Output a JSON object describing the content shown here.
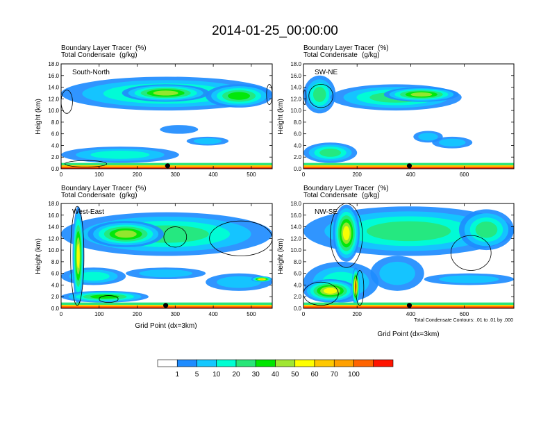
{
  "figure": {
    "title": "2014-01-25_00:00:00",
    "field_title": "Boundary Layer Tracer",
    "field_units": "(%)",
    "contour_title": "Total Condensate",
    "contour_units": "(g/kg)",
    "xlabel": "Grid Point (dx=3km)",
    "ylabel": "Height (km)",
    "footnote": "Total Condensate Contours: .01 to .01 by .000"
  },
  "colorbar": {
    "levels": [
      "1",
      "5",
      "10",
      "20",
      "30",
      "40",
      "50",
      "60",
      "70",
      "100"
    ],
    "colors": [
      "#ffffff",
      "#1e8cff",
      "#14c8ff",
      "#00ffd2",
      "#28e678",
      "#00e600",
      "#a0e632",
      "#ffff00",
      "#ffc800",
      "#ffa000",
      "#ff6400",
      "#ff1400"
    ]
  },
  "chart_data": [
    {
      "type": "heatmap",
      "label": "South-North",
      "xlim": [
        0,
        555
      ],
      "ylim": [
        0,
        18
      ],
      "xticks": [
        0,
        100,
        200,
        300,
        400,
        500
      ],
      "yticks": [
        "0.0",
        "2.0",
        "4.0",
        "6.0",
        "8.0",
        "10.0",
        "12.0",
        "14.0",
        "16.0",
        "18.0"
      ],
      "yvals": [
        0,
        2,
        4,
        6,
        8,
        10,
        12,
        14,
        16,
        18
      ],
      "marker_x": 280,
      "blobs": [
        {
          "x0": 0,
          "x1": 555,
          "y0": 10.0,
          "y1": 15.8,
          "level": 4
        },
        {
          "x0": 160,
          "x1": 390,
          "y0": 11.5,
          "y1": 14.5,
          "level": 6
        },
        {
          "x0": 380,
          "x1": 555,
          "y0": 10.5,
          "y1": 14.5,
          "level": 5
        },
        {
          "x0": 260,
          "x1": 360,
          "y0": 6.0,
          "y1": 7.5,
          "level": 1
        },
        {
          "x0": 330,
          "x1": 440,
          "y0": 4.0,
          "y1": 5.5,
          "level": 2
        },
        {
          "x0": 0,
          "x1": 310,
          "y0": 1.0,
          "y1": 3.8,
          "level": 3
        }
      ],
      "contours": [
        {
          "x0": 0,
          "x1": 30,
          "y0": 9.5,
          "y1": 13.5
        },
        {
          "x0": 540,
          "x1": 555,
          "y0": 11.0,
          "y1": 14.5
        },
        {
          "x0": 10,
          "x1": 120,
          "y0": 0.3,
          "y1": 1.4
        }
      ]
    },
    {
      "type": "heatmap",
      "label": "SW-NE",
      "xlim": [
        0,
        785
      ],
      "ylim": [
        0,
        18
      ],
      "xticks": [
        0,
        200,
        400,
        600
      ],
      "yticks": [
        "0.0",
        "2.0",
        "4.0",
        "6.0",
        "8.0",
        "10.0",
        "12.0",
        "14.0",
        "16.0",
        "18.0"
      ],
      "yvals": [
        0,
        2,
        4,
        6,
        8,
        10,
        12,
        14,
        16,
        18
      ],
      "marker_x": 395,
      "blobs": [
        {
          "x0": 0,
          "x1": 120,
          "y0": 9.5,
          "y1": 16.0,
          "level": 4
        },
        {
          "x0": 100,
          "x1": 590,
          "y0": 10.0,
          "y1": 14.5,
          "level": 4
        },
        {
          "x0": 300,
          "x1": 580,
          "y0": 11.5,
          "y1": 14.0,
          "level": 6
        },
        {
          "x0": 410,
          "x1": 520,
          "y0": 4.5,
          "y1": 6.5,
          "level": 2
        },
        {
          "x0": 480,
          "x1": 630,
          "y0": 3.5,
          "y1": 5.5,
          "level": 2
        },
        {
          "x0": 0,
          "x1": 200,
          "y0": 1.0,
          "y1": 4.5,
          "level": 4
        }
      ],
      "contours": [
        {
          "x0": 20,
          "x1": 110,
          "y0": 10.5,
          "y1": 14.5
        },
        {
          "x0": 0,
          "x1": 10,
          "y0": 11.0,
          "y1": 13.5
        }
      ]
    },
    {
      "type": "heatmap",
      "label": "West-East",
      "xlim": [
        0,
        555
      ],
      "ylim": [
        0,
        18
      ],
      "xticks": [
        0,
        100,
        200,
        300,
        400,
        500
      ],
      "yticks": [
        "0.0",
        "2.0",
        "4.0",
        "6.0",
        "8.0",
        "10.0",
        "12.0",
        "14.0",
        "16.0",
        "18.0"
      ],
      "yvals": [
        0,
        2,
        4,
        6,
        8,
        10,
        12,
        14,
        16,
        18
      ],
      "marker_x": 275,
      "blobs": [
        {
          "x0": 0,
          "x1": 555,
          "y0": 9.0,
          "y1": 16.5,
          "level": 4
        },
        {
          "x0": 70,
          "x1": 270,
          "y0": 10.5,
          "y1": 15.0,
          "level": 6
        },
        {
          "x0": 0,
          "x1": 170,
          "y0": 4.0,
          "y1": 7.0,
          "level": 3
        },
        {
          "x0": 170,
          "x1": 380,
          "y0": 5.0,
          "y1": 7.0,
          "level": 2
        },
        {
          "x0": 380,
          "x1": 555,
          "y0": 3.0,
          "y1": 6.0,
          "level": 2
        },
        {
          "x0": 500,
          "x1": 555,
          "y0": 4.5,
          "y1": 5.5,
          "level": 8
        },
        {
          "x0": 30,
          "x1": 60,
          "y0": 0.5,
          "y1": 17.5,
          "level": 7
        },
        {
          "x0": 0,
          "x1": 230,
          "y0": 1.0,
          "y1": 3.0,
          "level": 5
        }
      ],
      "contours": [
        {
          "x0": 25,
          "x1": 60,
          "y0": 0.5,
          "y1": 17.5
        },
        {
          "x0": 270,
          "x1": 330,
          "y0": 10.5,
          "y1": 14.0
        },
        {
          "x0": 390,
          "x1": 555,
          "y0": 9.0,
          "y1": 15.0
        },
        {
          "x0": 100,
          "x1": 150,
          "y0": 1.0,
          "y1": 2.2
        }
      ]
    },
    {
      "type": "heatmap",
      "label": "NW-SE",
      "xlim": [
        0,
        785
      ],
      "ylim": [
        0,
        18
      ],
      "xticks": [
        0,
        200,
        400,
        600
      ],
      "yticks": [
        "0.0",
        "2.0",
        "4.0",
        "6.0",
        "8.0",
        "10.0",
        "12.0",
        "14.0",
        "16.0",
        "18.0"
      ],
      "yvals": [
        0,
        2,
        4,
        6,
        8,
        10,
        12,
        14,
        16,
        18
      ],
      "marker_x": 395,
      "blobs": [
        {
          "x0": 0,
          "x1": 785,
          "y0": 9.0,
          "y1": 17.5,
          "level": 4
        },
        {
          "x0": 110,
          "x1": 210,
          "y0": 8.0,
          "y1": 17.8,
          "level": 7
        },
        {
          "x0": 580,
          "x1": 785,
          "y0": 10.0,
          "y1": 17.0,
          "level": 4
        },
        {
          "x0": 0,
          "x1": 280,
          "y0": 1.0,
          "y1": 8.0,
          "level": 3
        },
        {
          "x0": 0,
          "x1": 200,
          "y0": 1.0,
          "y1": 5.0,
          "level": 7
        },
        {
          "x0": 180,
          "x1": 210,
          "y0": 0.5,
          "y1": 7.0,
          "level": 9
        },
        {
          "x0": 250,
          "x1": 450,
          "y0": 3.0,
          "y1": 9.0,
          "level": 2
        },
        {
          "x0": 450,
          "x1": 785,
          "y0": 4.0,
          "y1": 6.0,
          "level": 2
        }
      ],
      "contours": [
        {
          "x0": 100,
          "x1": 220,
          "y0": 7.0,
          "y1": 18.0
        },
        {
          "x0": 550,
          "x1": 700,
          "y0": 6.5,
          "y1": 12.5
        },
        {
          "x0": 0,
          "x1": 130,
          "y0": 0.5,
          "y1": 4.5
        },
        {
          "x0": 195,
          "x1": 225,
          "y0": 0.5,
          "y1": 6.5
        }
      ]
    }
  ]
}
